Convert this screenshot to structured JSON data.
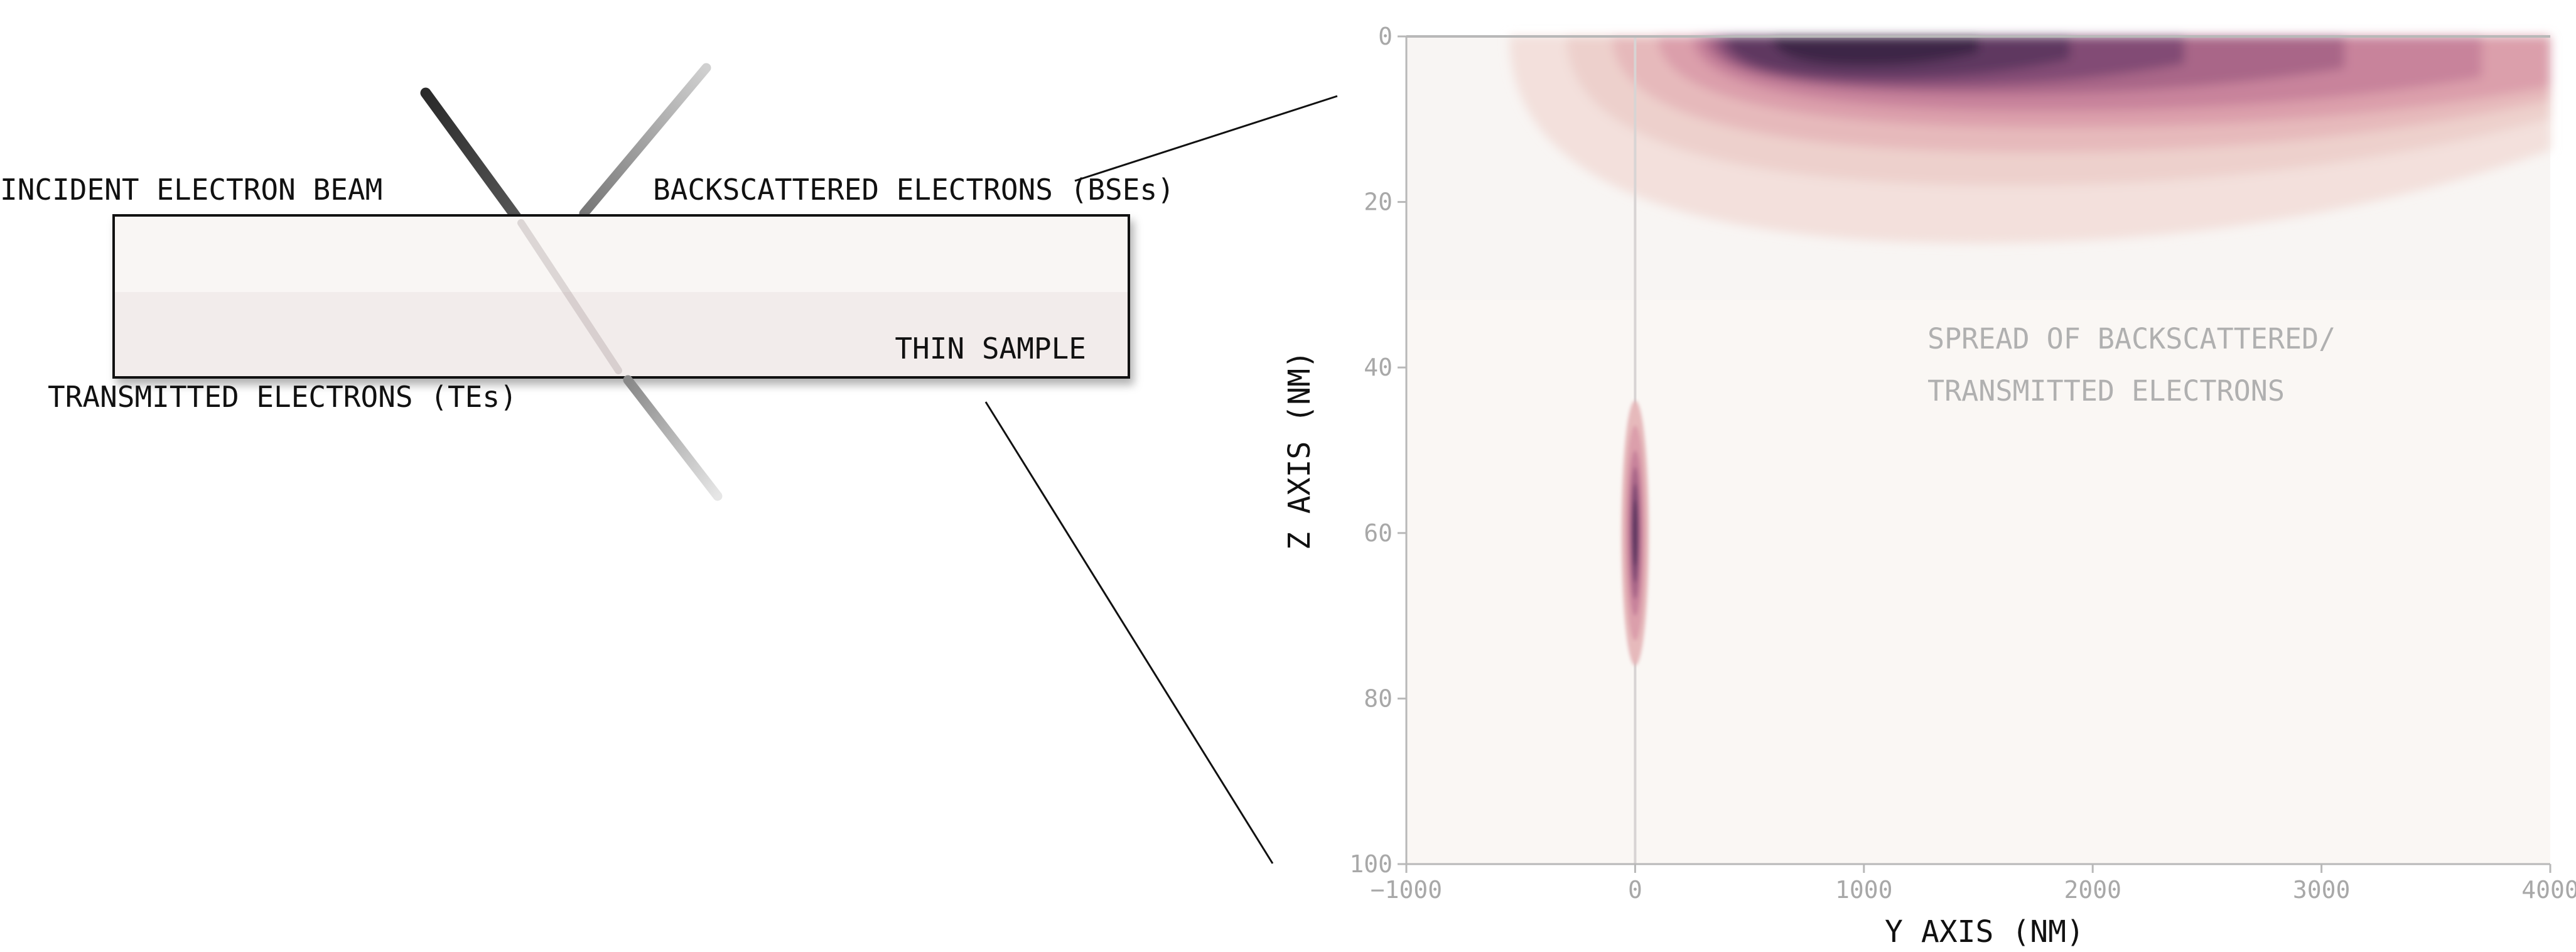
{
  "diagram": {
    "labels": {
      "incident_beam": "INCIDENT ELECTRON BEAM",
      "backscattered": "BACKSCATTERED ELECTRONS (BSEs)",
      "transmitted": "TRANSMITTED ELECTRONS (TEs)",
      "sample": "THIN SAMPLE"
    }
  },
  "chart_data": {
    "type": "heatmap",
    "title": "",
    "xlabel": "Y AXIS (NM)",
    "ylabel": "Z AXIS (NM)",
    "xlim": [
      -1000,
      4000
    ],
    "ylim": [
      100,
      0
    ],
    "x_ticks": [
      "−1000",
      "0",
      "1000",
      "2000",
      "3000",
      "4000"
    ],
    "x_tick_values": [
      -1000,
      0,
      1000,
      2000,
      3000,
      4000
    ],
    "y_ticks": [
      "0",
      "20",
      "40",
      "60",
      "80",
      "100"
    ],
    "y_tick_values": [
      0,
      20,
      40,
      60,
      80,
      100
    ],
    "annotation": [
      "SPREAD OF BACKSCATTERED/",
      "TRANSMITTED ELECTRONS"
    ],
    "colors": {
      "background": "#faf7f4",
      "levels": [
        "#f3e0dc",
        "#edd0cc",
        "#e6b9bb",
        "#db9fab",
        "#c8839b",
        "#a96688",
        "#824c74",
        "#5e3860",
        "#3d2746"
      ]
    },
    "regions": [
      {
        "name": "backscattered",
        "y_center": 1000,
        "z_center": 3,
        "y_spread": 1500,
        "z_spread": 20
      },
      {
        "name": "transmitted",
        "y_center": 0,
        "z_center": 60,
        "y_spread": 50,
        "z_spread": 15
      }
    ]
  }
}
